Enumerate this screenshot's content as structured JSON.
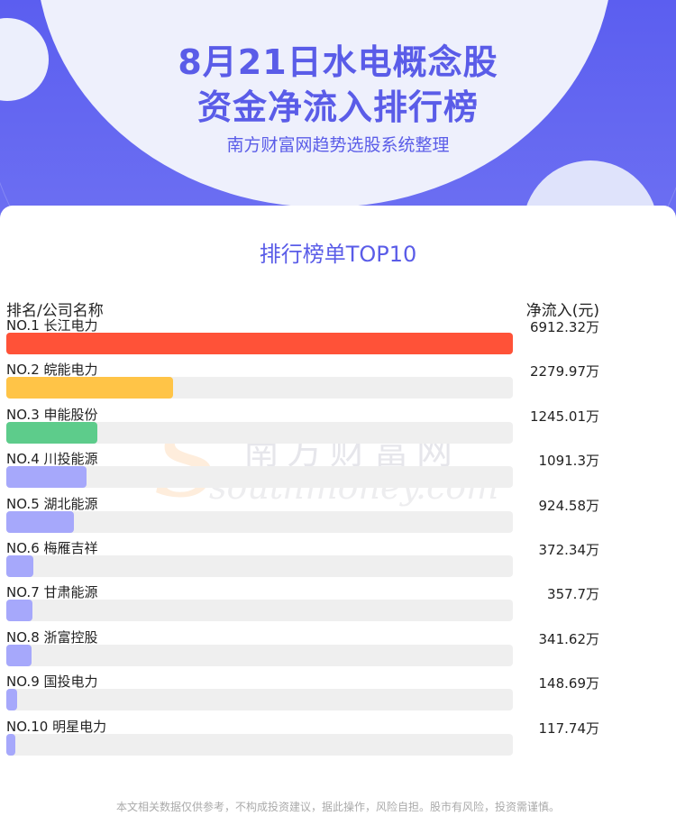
{
  "header": {
    "title_line1": "8月21日水电概念股",
    "title_line2": "资金净流入排行榜",
    "subtitle": "南方财富网趋势选股系统整理"
  },
  "card": {
    "title": "排行榜单TOP10",
    "col_left": "排名/公司名称",
    "col_right": "净流入(元)"
  },
  "watermark": {
    "cn": "南方财富网",
    "en": "southmoney.com"
  },
  "footer": "本文相关数据仅供参考，不构成投资建议，据此操作，风险自担。股市有风险，投资需谨慎。",
  "colors": {
    "accent": "#5a5ce8",
    "rank1": "#ff5238",
    "rank2": "#ffc447",
    "rank3": "#5dcc8b",
    "rest": "#a6a8fb",
    "track": "#efefef"
  },
  "chart_data": {
    "type": "bar",
    "orientation": "horizontal",
    "title": "排行榜单TOP10",
    "xlabel": "净流入(元)",
    "ylabel": "排名/公司名称",
    "max_value": 6912.32,
    "items": [
      {
        "rank": "NO.1",
        "name": "长江电力",
        "value": 6912.32,
        "label": "6912.32万"
      },
      {
        "rank": "NO.2",
        "name": "皖能电力",
        "value": 2279.97,
        "label": "2279.97万"
      },
      {
        "rank": "NO.3",
        "name": "申能股份",
        "value": 1245.01,
        "label": "1245.01万"
      },
      {
        "rank": "NO.4",
        "name": "川投能源",
        "value": 1091.3,
        "label": "1091.3万"
      },
      {
        "rank": "NO.5",
        "name": "湖北能源",
        "value": 924.58,
        "label": "924.58万"
      },
      {
        "rank": "NO.6",
        "name": "梅雁吉祥",
        "value": 372.34,
        "label": "372.34万"
      },
      {
        "rank": "NO.7",
        "name": "甘肃能源",
        "value": 357.7,
        "label": "357.7万"
      },
      {
        "rank": "NO.8",
        "name": "浙富控股",
        "value": 341.62,
        "label": "341.62万"
      },
      {
        "rank": "NO.9",
        "name": "国投电力",
        "value": 148.69,
        "label": "148.69万"
      },
      {
        "rank": "NO.10",
        "name": "明星电力",
        "value": 117.74,
        "label": "117.74万"
      }
    ]
  }
}
